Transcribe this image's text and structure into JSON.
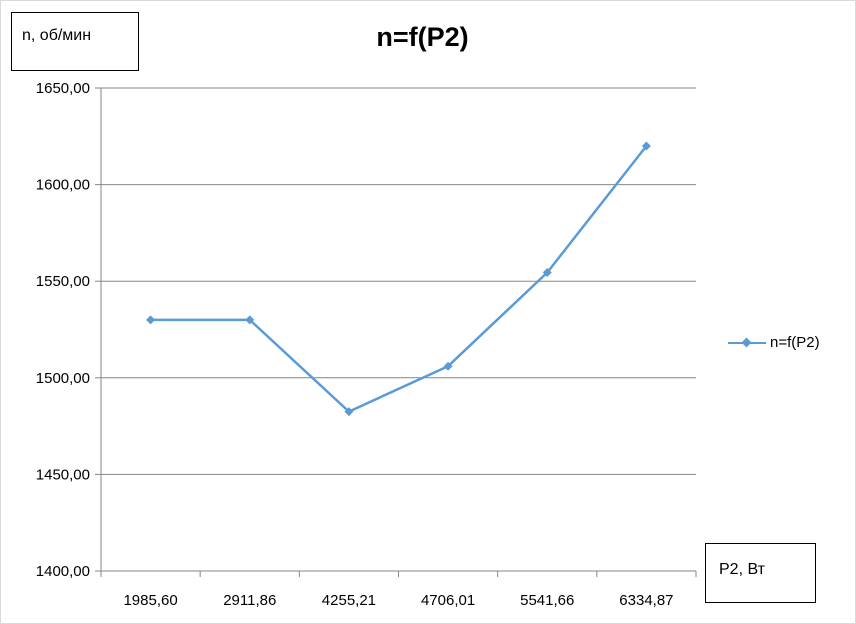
{
  "chart_data": {
    "type": "line",
    "title": "n=f(P2)",
    "xlabel": "P2, Вт",
    "ylabel": "n, об/мин",
    "categories": [
      "1985,60",
      "2911,86",
      "4255,21",
      "4706,01",
      "5541,66",
      "6334,87"
    ],
    "series": [
      {
        "name": "n=f(P2)",
        "values": [
          1530,
          1530,
          1482.5,
          1506,
          1554.5,
          1620
        ]
      }
    ],
    "ylim": [
      1400,
      1650
    ],
    "yticks": [
      "1400,00",
      "1450,00",
      "1500,00",
      "1550,00",
      "1600,00",
      "1650,00"
    ],
    "grid": "horizontal",
    "legend_position": "right",
    "colors": {
      "series": "#5b9bd5",
      "grid": "#868686",
      "axis": "#868686"
    }
  }
}
